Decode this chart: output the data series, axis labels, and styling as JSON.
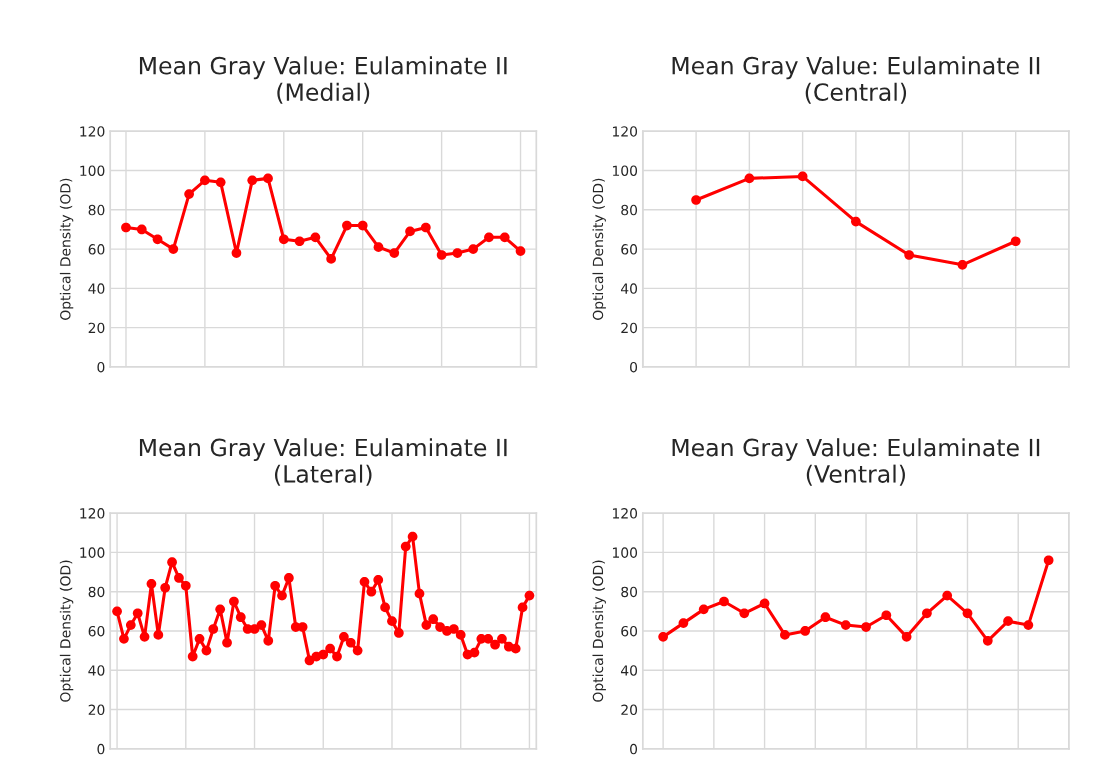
{
  "chart_data": [
    {
      "type": "line",
      "title": "Mean Gray Value: Eulaminate II\n(Medial)",
      "ylabel": "Optical Density (OD)",
      "categories": [
        null,
        null,
        null,
        null,
        null,
        null,
        null,
        null,
        null,
        null,
        null,
        null,
        null,
        null,
        null,
        null,
        null,
        null,
        null,
        null,
        null,
        null,
        null,
        null,
        null,
        null
      ],
      "series": [
        {
          "color": "#ff0000",
          "values": [
            71,
            70,
            65,
            60,
            88,
            95,
            94,
            58,
            95,
            96,
            65,
            64,
            66,
            55,
            72,
            72,
            61,
            58,
            69,
            71,
            57,
            58,
            60,
            66,
            66,
            59
          ]
        }
      ],
      "ylim": [
        0,
        120
      ],
      "yticks": [
        0,
        20,
        40,
        60,
        80,
        100,
        120
      ],
      "grid": true,
      "marker": "circle",
      "line_style": "solid",
      "tick_labels": "y"
    },
    {
      "type": "line",
      "title": "Mean Gray Value: Eulaminate II\n(Central)",
      "ylabel": "Optical Density (OD)",
      "categories": [
        null,
        null,
        null,
        null,
        null,
        null,
        null
      ],
      "series": [
        {
          "color": "#ff0000",
          "values": [
            85,
            96,
            97,
            74,
            57,
            52,
            64
          ]
        }
      ],
      "ylim": [
        0,
        120
      ],
      "yticks": [
        0,
        20,
        40,
        60,
        80,
        100,
        120
      ],
      "grid": true,
      "marker": "circle",
      "line_style": "solid",
      "tick_labels": "y"
    },
    {
      "type": "line",
      "title": "Mean Gray Value: Eulaminate II\n(Lateral)",
      "ylabel": "Optical Density (OD)",
      "categories": [
        null,
        null,
        null,
        null,
        null,
        null,
        null,
        null,
        null,
        null,
        null,
        null,
        null,
        null,
        null,
        null,
        null,
        null,
        null,
        null,
        null,
        null,
        null,
        null,
        null,
        null,
        null,
        null,
        null,
        null,
        null,
        null,
        null,
        null,
        null,
        null,
        null,
        null,
        null,
        null,
        null,
        null,
        null,
        null,
        null,
        null,
        null,
        null,
        null,
        null,
        null,
        null,
        null,
        null,
        null,
        null,
        null,
        null,
        null,
        null,
        null
      ],
      "series": [
        {
          "color": "#ff0000",
          "values": [
            70,
            56,
            63,
            69,
            57,
            84,
            58,
            82,
            95,
            87,
            83,
            47,
            56,
            50,
            61,
            71,
            54,
            75,
            67,
            61,
            61,
            63,
            55,
            83,
            78,
            87,
            62,
            62,
            45,
            47,
            48,
            51,
            47,
            57,
            54,
            50,
            85,
            80,
            86,
            72,
            65,
            59,
            103,
            108,
            79,
            63,
            66,
            62,
            60,
            61,
            58,
            48,
            49,
            56,
            56,
            53,
            56,
            52,
            51,
            72,
            78
          ]
        }
      ],
      "ylim": [
        0,
        120
      ],
      "yticks": [
        0,
        20,
        40,
        60,
        80,
        100,
        120
      ],
      "grid": true,
      "marker": "circle",
      "line_style": "solid",
      "tick_labels": "y"
    },
    {
      "type": "line",
      "title": "Mean Gray Value: Eulaminate II\n(Ventral)",
      "ylabel": "Optical Density (OD)",
      "categories": [
        null,
        null,
        null,
        null,
        null,
        null,
        null,
        null,
        null,
        null,
        null,
        null,
        null,
        null,
        null,
        null,
        null,
        null,
        null,
        null
      ],
      "series": [
        {
          "color": "#ff0000",
          "values": [
            57,
            64,
            71,
            75,
            69,
            74,
            58,
            60,
            67,
            63,
            62,
            68,
            57,
            69,
            78,
            69,
            55,
            65,
            63,
            96
          ]
        }
      ],
      "ylim": [
        0,
        120
      ],
      "yticks": [
        0,
        20,
        40,
        60,
        80,
        100,
        120
      ],
      "grid": true,
      "marker": "circle",
      "line_style": "solid",
      "tick_labels": "y"
    }
  ]
}
